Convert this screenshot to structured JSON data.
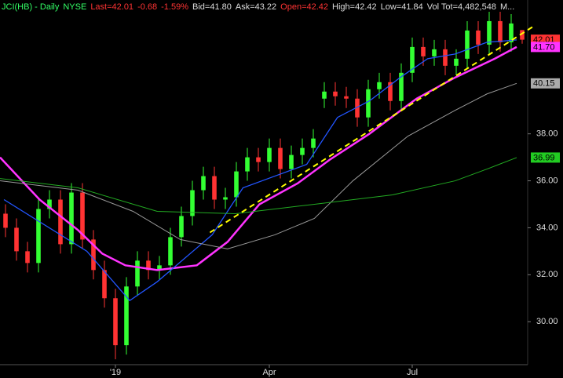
{
  "chart_data": {
    "type": "candlestick",
    "header": [
      {
        "text": "JCI(HB) - Daily",
        "color": "#33ff66"
      },
      {
        "text": "NYSE",
        "color": "#33ff66"
      },
      {
        "text": "Last=42.01",
        "color": "#ff3333"
      },
      {
        "text": "-0.68",
        "color": "#ff3333"
      },
      {
        "text": "-1.59%",
        "color": "#ff3333"
      },
      {
        "text": "Bid=41.80",
        "color": "#dddddd"
      },
      {
        "text": "Ask=43.22",
        "color": "#dddddd"
      },
      {
        "text": "Open=42.42",
        "color": "#ff3333"
      },
      {
        "text": "High=42.42",
        "color": "#dddddd"
      },
      {
        "text": "Low=41.84",
        "color": "#dddddd"
      },
      {
        "text": "Vol Tot=4,482,548",
        "color": "#dddddd"
      },
      {
        "text": "M...",
        "color": "#dddddd"
      }
    ],
    "categories": [
      null,
      null,
      null,
      null,
      null,
      null,
      null,
      null,
      null,
      null,
      "'19",
      null,
      null,
      null,
      null,
      null,
      null,
      null,
      null,
      null,
      null,
      null,
      null,
      null,
      "Apr",
      null,
      null,
      null,
      null,
      null,
      null,
      null,
      null,
      null,
      null,
      null,
      null,
      "Jul",
      null,
      null,
      null,
      null,
      null,
      null,
      null,
      null,
      null,
      null
    ],
    "open": [
      34.6,
      34.0,
      33.0,
      32.5,
      34.8,
      35.2,
      33.3,
      35.5,
      33.5,
      32.2,
      31.0,
      29.0,
      31.5,
      32.6,
      32.2,
      32.4,
      33.6,
      34.5,
      35.6,
      36.2,
      35.2,
      35.3,
      36.4,
      37.0,
      36.8,
      37.4,
      36.5,
      37.1,
      37.4,
      39.5,
      39.8,
      39.6,
      39.5,
      38.7,
      39.9,
      40.2,
      39.4,
      40.6,
      41.7,
      41.3,
      41.6,
      40.9,
      41.2,
      42.4,
      41.8,
      42.8,
      41.9,
      42.42
    ],
    "high": [
      35.0,
      34.4,
      33.4,
      35.2,
      35.6,
      35.6,
      35.9,
      35.9,
      33.9,
      32.6,
      31.4,
      31.9,
      33.0,
      33.0,
      32.8,
      34.0,
      34.9,
      36.0,
      36.6,
      36.6,
      35.7,
      36.8,
      37.4,
      37.4,
      37.8,
      37.8,
      37.5,
      37.8,
      38.2,
      40.2,
      40.2,
      40.0,
      39.9,
      40.3,
      40.6,
      40.6,
      41.0,
      42.1,
      42.1,
      42.0,
      42.0,
      41.6,
      42.8,
      42.8,
      43.2,
      43.2,
      43.1,
      42.42
    ],
    "low": [
      33.6,
      32.6,
      32.1,
      32.1,
      34.4,
      32.9,
      32.9,
      33.1,
      31.8,
      30.6,
      28.4,
      28.6,
      31.1,
      31.8,
      31.8,
      32.0,
      33.2,
      34.1,
      35.2,
      34.8,
      34.8,
      34.9,
      36.0,
      36.4,
      36.4,
      36.1,
      36.1,
      36.7,
      37.0,
      39.1,
      39.2,
      39.1,
      38.3,
      38.3,
      39.5,
      39.0,
      39.0,
      40.2,
      40.9,
      40.9,
      40.5,
      40.5,
      40.8,
      41.4,
      41.4,
      41.5,
      41.5,
      41.84
    ],
    "close": [
      34.0,
      33.0,
      32.5,
      34.8,
      35.2,
      33.3,
      35.5,
      33.5,
      32.2,
      31.0,
      29.0,
      31.5,
      32.6,
      32.2,
      32.4,
      33.6,
      34.5,
      35.6,
      36.2,
      35.2,
      35.3,
      36.4,
      37.0,
      36.8,
      37.4,
      36.5,
      37.1,
      37.4,
      37.8,
      39.8,
      39.6,
      39.5,
      38.7,
      39.9,
      40.2,
      39.4,
      40.6,
      41.7,
      41.3,
      41.6,
      40.9,
      41.2,
      42.4,
      41.8,
      42.8,
      41.9,
      42.7,
      42.01
    ],
    "up_color": "#33ff33",
    "down_color": "#ff3333",
    "overlays": [
      {
        "color": "#ff33ff",
        "width": 2.5,
        "dash": false,
        "x": [
          -0.5,
          3.1,
          6.6,
          8.8,
          10.9,
          13.8,
          17.4,
          20.2,
          23.1,
          26.6,
          29.5,
          33.1,
          37.4,
          40.9,
          44.5,
          46.5
        ],
        "values": [
          37.0,
          35.2,
          33.9,
          32.9,
          32.4,
          32.2,
          32.4,
          33.4,
          35.0,
          35.9,
          36.9,
          38.0,
          39.5,
          40.4,
          41.2,
          41.7
        ]
      },
      {
        "color": "#2255ff",
        "width": 1.3,
        "dash": false,
        "x": [
          -0.14,
          7.4,
          11.3,
          13.8,
          18.8,
          21.6,
          24.5,
          27.4,
          30.2,
          33.1,
          35.9,
          38.4,
          40.9,
          43.8,
          46.5
        ],
        "values": [
          35.2,
          33.0,
          30.9,
          31.7,
          33.7,
          35.7,
          36.2,
          36.7,
          38.7,
          39.4,
          40.4,
          41.2,
          41.4,
          41.9,
          42.0
        ]
      },
      {
        "color": "#999999",
        "width": 1,
        "dash": false,
        "x": [
          -0.5,
          6.6,
          11.6,
          15.9,
          20.2,
          24.5,
          28.1,
          31.6,
          36.6,
          40.9,
          43.8,
          46.5
        ],
        "values": [
          36.0,
          35.6,
          34.7,
          33.5,
          33.1,
          33.7,
          34.4,
          36.0,
          37.9,
          39.0,
          39.7,
          40.15
        ]
      },
      {
        "color": "#22aa22",
        "width": 1,
        "dash": false,
        "x": [
          -0.5,
          6.6,
          13.8,
          20.9,
          28.1,
          35.2,
          40.9,
          43.8,
          46.5
        ],
        "values": [
          36.1,
          35.7,
          34.7,
          34.6,
          35.0,
          35.4,
          36.0,
          36.5,
          36.99
        ]
      },
      {
        "color": "#ffff00",
        "width": 2,
        "dash": true,
        "x": [
          18.6,
          48.1
        ],
        "values": [
          33.8,
          42.6
        ]
      }
    ],
    "price_tags": [
      {
        "value": 42.01,
        "color": "#ff3333"
      },
      {
        "value": {
          "value": 41.7,
          "label": "41.70"
        },
        "color": "#ff33ff"
      },
      {
        "value": 40.15,
        "color": "#aaaaaa"
      },
      {
        "value": 36.99,
        "color": "#22cc22"
      }
    ],
    "xlim": [
      -0.5,
      47.5
    ],
    "ylim": [
      28.17,
      43.7
    ],
    "yticks": [
      {
        "value": 30,
        "label": "30.00"
      },
      {
        "value": 32,
        "label": "32.00"
      },
      {
        "value": 34,
        "label": "34.00"
      },
      {
        "value": 36,
        "label": "36.00"
      },
      {
        "value": 38,
        "label": "38.00"
      }
    ]
  }
}
